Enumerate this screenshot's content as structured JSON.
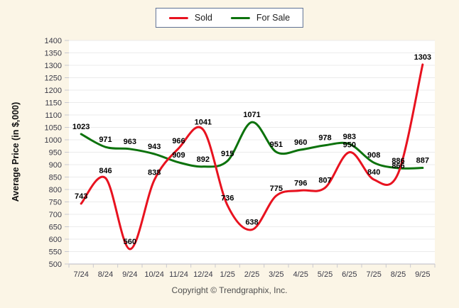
{
  "chart_data": {
    "type": "line",
    "title": "",
    "xlabel": "",
    "ylabel": "Average Price (in $,000)",
    "ylim": [
      500,
      1400
    ],
    "ytick_step": 50,
    "yticks": [
      500,
      550,
      600,
      650,
      700,
      750,
      800,
      850,
      900,
      950,
      1000,
      1050,
      1100,
      1150,
      1200,
      1250,
      1300,
      1350,
      1400
    ],
    "grid": "horizontal",
    "legend_position": "top-center",
    "categories": [
      "7/24",
      "8/24",
      "9/24",
      "10/24",
      "11/24",
      "12/24",
      "1/25",
      "2/25",
      "3/25",
      "4/25",
      "5/25",
      "6/25",
      "7/25",
      "8/25",
      "9/25"
    ],
    "series": [
      {
        "name": "Sold",
        "color": "#e8121f",
        "values": [
          743,
          846,
          560,
          838,
          966,
          1041,
          736,
          638,
          775,
          796,
          807,
          950,
          840,
          866,
          1303
        ]
      },
      {
        "name": "For Sale",
        "color": "#0c720c",
        "values": [
          1023,
          971,
          963,
          943,
          909,
          892,
          915,
          1071,
          951,
          960,
          978,
          983,
          908,
          886,
          887
        ]
      }
    ]
  },
  "colors": {
    "page_background": "#fbf5e6",
    "plot_background": "#ffffff",
    "gridline": "#ebebeb",
    "axis_line": "#b9b9c4",
    "tick_mark": "#c9c9d0",
    "legend_border": "#5f7193"
  },
  "footer": {
    "copyright": "Copyright © Trendgraphix, Inc."
  }
}
